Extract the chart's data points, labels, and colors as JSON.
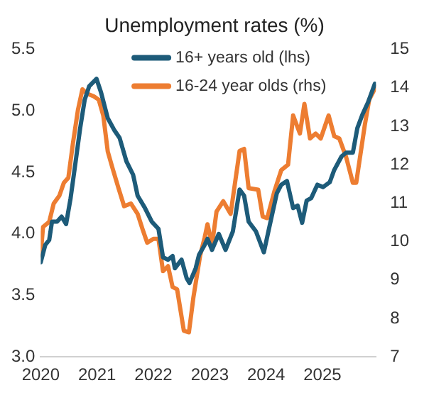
{
  "chart_data": {
    "type": "line",
    "title": "Unemployment rates (%)",
    "xlim": [
      2020,
      2025.95
    ],
    "xticks": [
      2020,
      2021,
      2022,
      2023,
      2024,
      2025
    ],
    "ylim": [
      3,
      5.5
    ],
    "yticks": [
      {
        "value": 3,
        "label": "3.0"
      },
      {
        "value": 3.5,
        "label": "3.5"
      },
      {
        "value": 4,
        "label": "4.0"
      },
      {
        "value": 4.5,
        "label": "4.5"
      },
      {
        "value": 5,
        "label": "5.0"
      },
      {
        "value": 5.5,
        "label": "5.5"
      }
    ],
    "y2lim": [
      7,
      15
    ],
    "y2ticks": [
      7,
      8,
      9,
      10,
      11,
      12,
      13,
      14,
      15
    ],
    "grid": false,
    "legend": "top right",
    "marker": "none",
    "line_style": "solid",
    "series": [
      {
        "name": "16+ years old (lhs)",
        "color": "#1d5b79",
        "axis": "y",
        "x": [
          2020,
          2020.08,
          2020.15,
          2020.2,
          2020.29,
          2020.37,
          2020.45,
          2020.53,
          2020.62,
          2020.7,
          2020.78,
          2020.86,
          2020.99,
          2021.07,
          2021.19,
          2021.31,
          2021.4,
          2021.52,
          2021.64,
          2021.72,
          2021.85,
          2021.97,
          2022.09,
          2022.17,
          2022.26,
          2022.34,
          2022.38,
          2022.5,
          2022.59,
          2022.64,
          2022.75,
          2022.81,
          2022.91,
          2022.96,
          2023.04,
          2023.16,
          2023.28,
          2023.41,
          2023.53,
          2023.61,
          2023.69,
          2023.82,
          2023.96,
          2024.06,
          2024.19,
          2024.27,
          2024.37,
          2024.48,
          2024.56,
          2024.64,
          2024.72,
          2024.8,
          2024.91,
          2025.01,
          2025.13,
          2025.21,
          2025.34,
          2025.42,
          2025.54,
          2025.62,
          2025.71,
          2025.81,
          2025.93
        ],
        "values": [
          3.77,
          3.91,
          3.95,
          4.1,
          4.1,
          4.14,
          4.08,
          4.29,
          4.59,
          4.86,
          5.09,
          5.2,
          5.26,
          5.15,
          4.94,
          4.84,
          4.78,
          4.59,
          4.48,
          4.31,
          4.21,
          4.1,
          4.04,
          3.81,
          3.79,
          3.82,
          3.72,
          3.79,
          3.64,
          3.6,
          3.72,
          3.83,
          3.91,
          3.96,
          3.87,
          4.0,
          3.87,
          4.02,
          4.36,
          4.31,
          4.1,
          4.02,
          3.85,
          4.06,
          4.33,
          4.4,
          4.43,
          4.21,
          4.23,
          4.09,
          4.27,
          4.29,
          4.4,
          4.38,
          4.42,
          4.52,
          4.63,
          4.66,
          4.66,
          4.86,
          4.97,
          5.07,
          5.22
        ]
      },
      {
        "name": "16-24 year olds (rhs)",
        "color": "#ed7d31",
        "axis": "y2",
        "x": [
          2020,
          2020.04,
          2020.15,
          2020.23,
          2020.33,
          2020.41,
          2020.49,
          2020.57,
          2020.66,
          2020.74,
          2020.82,
          2020.94,
          2021.03,
          2021.11,
          2021.19,
          2021.27,
          2021.38,
          2021.48,
          2021.6,
          2021.72,
          2021.81,
          2021.89,
          2022.0,
          2022.09,
          2022.17,
          2022.26,
          2022.34,
          2022.42,
          2022.54,
          2022.63,
          2022.71,
          2022.83,
          2022.91,
          2022.96,
          2023.04,
          2023.12,
          2023.24,
          2023.37,
          2023.53,
          2023.61,
          2023.69,
          2023.86,
          2023.94,
          2024.02,
          2024.15,
          2024.27,
          2024.39,
          2024.48,
          2024.6,
          2024.68,
          2024.78,
          2024.88,
          2024.97,
          2025.11,
          2025.21,
          2025.3,
          2025.42,
          2025.54,
          2025.6,
          2025.75,
          2025.83,
          2025.95
        ],
        "values": [
          9.64,
          10.38,
          10.51,
          10.99,
          11.19,
          11.53,
          11.66,
          12.54,
          13.42,
          13.96,
          13.85,
          13.78,
          13.69,
          13.28,
          12.34,
          11.93,
          11.39,
          10.92,
          10.99,
          10.72,
          10.31,
          9.97,
          10.07,
          10.07,
          9.23,
          9.36,
          8.82,
          8.76,
          7.68,
          7.64,
          8.55,
          9.64,
          10.11,
          10.45,
          9.91,
          10.78,
          11.05,
          10.72,
          12.36,
          12.41,
          11.39,
          11.35,
          10.65,
          10.61,
          11.32,
          11.86,
          12.0,
          13.28,
          12.81,
          13.58,
          12.68,
          12.81,
          12.68,
          13.28,
          12.74,
          12.68,
          12.2,
          11.53,
          11.53,
          13.01,
          13.69,
          14.03
        ]
      }
    ]
  }
}
